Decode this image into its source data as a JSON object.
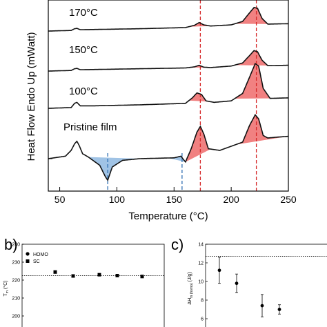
{
  "chart_data": [
    {
      "type": "line",
      "title": "",
      "xlabel": "Temperature (°C)",
      "ylabel": "Heat Flow Endo Up (mWatt)",
      "xlim": [
        40,
        250
      ],
      "xticks": [
        50,
        100,
        150,
        200,
        250
      ],
      "grid": false,
      "series": [
        {
          "name": "170°C",
          "x": [
            40,
            60,
            63,
            65,
            68,
            80,
            120,
            160,
            168,
            172,
            176,
            182,
            200,
            210,
            216,
            220,
            223,
            227,
            232,
            250
          ],
          "y": [
            0.0,
            0.03,
            0.12,
            0.14,
            0.07,
            0.08,
            0.12,
            0.18,
            0.3,
            0.44,
            0.32,
            0.26,
            0.32,
            0.5,
            0.94,
            1.22,
            1.18,
            0.65,
            0.36,
            0.38
          ]
        },
        {
          "name": "150°C",
          "x": [
            40,
            60,
            63,
            65,
            68,
            80,
            120,
            160,
            168,
            172,
            176,
            182,
            200,
            210,
            216,
            220,
            223,
            227,
            232,
            250
          ],
          "y": [
            0.0,
            0.03,
            0.12,
            0.14,
            0.07,
            0.08,
            0.12,
            0.16,
            0.22,
            0.3,
            0.2,
            0.18,
            0.26,
            0.42,
            0.8,
            1.06,
            1.0,
            0.56,
            0.28,
            0.3
          ]
        },
        {
          "name": "100°C",
          "x": [
            40,
            60,
            63,
            65,
            68,
            80,
            120,
            160,
            166,
            170,
            174,
            178,
            185,
            200,
            210,
            216,
            221,
            224,
            228,
            234,
            250
          ],
          "y": [
            0.0,
            0.03,
            0.2,
            0.24,
            0.1,
            0.1,
            0.14,
            0.2,
            0.42,
            0.62,
            0.56,
            0.3,
            0.24,
            0.3,
            0.6,
            1.25,
            1.8,
            1.7,
            0.8,
            0.4,
            0.42
          ]
        },
        {
          "name": "Pristine film",
          "x": [
            40,
            55,
            60,
            63,
            65,
            67,
            70,
            75,
            85,
            90,
            92,
            96,
            105,
            120,
            150,
            156,
            160,
            165,
            170,
            173,
            176,
            180,
            190,
            210,
            216,
            221,
            224,
            228,
            232,
            240,
            250
          ],
          "y": [
            0.0,
            0.15,
            0.5,
            0.9,
            1.05,
            0.8,
            0.3,
            0.1,
            -0.4,
            -1.1,
            -1.3,
            -0.5,
            -0.1,
            0.0,
            0.05,
            0.15,
            -0.2,
            0.6,
            1.6,
            1.95,
            1.5,
            0.6,
            0.5,
            1.0,
            2.0,
            2.65,
            2.4,
            1.4,
            1.25,
            1.3,
            1.35
          ]
        }
      ],
      "reference_lines": [
        {
          "x": 173,
          "color": "#d62728",
          "style": "dashed",
          "full_height": true
        },
        {
          "x": 222,
          "color": "#d62728",
          "style": "dashed",
          "full_height": true
        },
        {
          "x": 92,
          "color": "#2f6fb3",
          "style": "dashed",
          "full_height": false
        },
        {
          "x": 157,
          "color": "#2f6fb3",
          "style": "dashed",
          "full_height": false
        }
      ],
      "colors": {
        "melt_fill": "#ef6b6b",
        "cold_crystallization_fill": "#8fb9e0",
        "line": "#111111"
      }
    },
    {
      "type": "scatter",
      "panel_label": "b)",
      "ylabel_main": "T",
      "ylabel_sub": "m",
      "ylabel_unit": "(°C)",
      "ylim": [
        190,
        240
      ],
      "yticks": [
        190,
        200,
        210,
        220,
        230,
        240
      ],
      "legend": [
        {
          "name": "HOMO",
          "marker": "circle"
        },
        {
          "name": "SC",
          "marker": "square"
        }
      ],
      "legend_placement": "top-left",
      "series": [
        {
          "name": "SC",
          "x": [
            1,
            2,
            3,
            4,
            5,
            6
          ],
          "y": [
            224.5,
            222.3,
            223.0,
            222.5,
            222.0,
            223.3
          ]
        }
      ],
      "reference_line": {
        "y": 222.5,
        "style": "dotted"
      }
    },
    {
      "type": "scatter",
      "panel_label": "c)",
      "ylabel_main": "ΔH",
      "ylabel_sub": "m (homo)",
      "ylabel_unit": "(J/g)",
      "ylim": [
        4,
        14
      ],
      "yticks": [
        6,
        8,
        10,
        12,
        14
      ],
      "series": [
        {
          "name": "",
          "x": [
            1,
            2,
            3,
            4
          ],
          "y": [
            11.2,
            9.8,
            7.4,
            7.0
          ],
          "yerr": [
            1.4,
            1.0,
            1.2,
            0.5
          ]
        }
      ],
      "reference_line": {
        "y": 12.7,
        "style": "dotted"
      }
    }
  ]
}
